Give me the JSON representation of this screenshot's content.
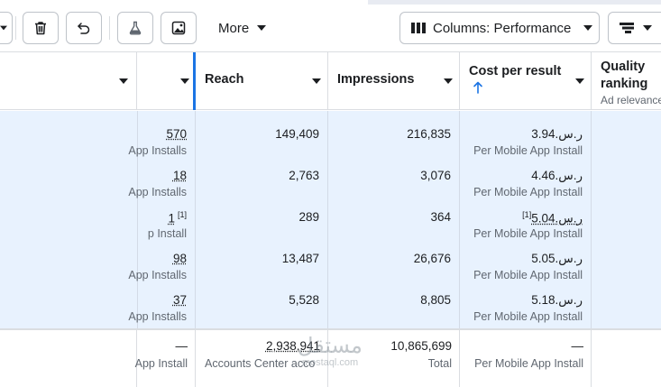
{
  "toolbar": {
    "more_label": "More",
    "columns_label": "Columns: Performance",
    "icons": [
      "delete-icon",
      "undo-icon",
      "test-flask-icon",
      "media-icon",
      "columns-icon",
      "breakdown-icon"
    ]
  },
  "table": {
    "headers": {
      "results": "",
      "reach": "Reach",
      "impressions": "Impressions",
      "cost": "Cost per result",
      "quality_line1": "Quality",
      "quality_line2": "ranking",
      "quality_sub": "Ad relevance"
    },
    "rows": [
      {
        "results": "570",
        "results_sub": "App Installs",
        "results_note": "",
        "reach": "149,409",
        "impressions": "216,835",
        "cost": "ر.س.3.94",
        "cost_sub": "Per Mobile App Install",
        "cost_note": ""
      },
      {
        "results": "18",
        "results_sub": "App Installs",
        "results_note": "",
        "reach": "2,763",
        "impressions": "3,076",
        "cost": "ر.س.4.46",
        "cost_sub": "Per Mobile App Install",
        "cost_note": ""
      },
      {
        "results": "1",
        "results_sub": "p Install",
        "results_note": "[1]",
        "reach": "289",
        "impressions": "364",
        "cost": "ر.س.5.04",
        "cost_sub": "Per Mobile App Install",
        "cost_note": "[1]"
      },
      {
        "results": "98",
        "results_sub": "App Installs",
        "results_note": "",
        "reach": "13,487",
        "impressions": "26,676",
        "cost": "ر.س.5.05",
        "cost_sub": "Per Mobile App Install",
        "cost_note": ""
      },
      {
        "results": "37",
        "results_sub": "App Installs",
        "results_note": "",
        "reach": "5,528",
        "impressions": "8,805",
        "cost": "ر.س.5.18",
        "cost_sub": "Per Mobile App Install",
        "cost_note": ""
      }
    ],
    "totals": {
      "results": "—",
      "results_sub": "App Install",
      "reach": "2,938,941",
      "reach_sub": "Accounts Center acco",
      "impressions": "10,865,699",
      "impressions_sub": "Total",
      "cost": "—",
      "cost_sub": "Per Mobile App Install"
    }
  },
  "watermark": {
    "arabic": "مستقل",
    "latin": "mostaql.com"
  },
  "colors": {
    "accent": "#1b74e4",
    "selected_row_bg": "#e8f2fe"
  }
}
